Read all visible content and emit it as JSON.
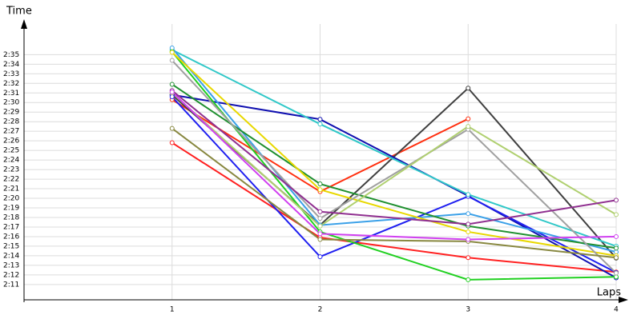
{
  "chart_data": {
    "type": "line",
    "y_label": "Time",
    "x_label": "Laps",
    "x": [
      1,
      2,
      3,
      4
    ],
    "xlim": [
      0,
      4
    ],
    "xticks": [
      1,
      2,
      3,
      4
    ],
    "ylim": [
      129.4,
      158.2
    ],
    "yticks": [
      {
        "value": 131,
        "label": "2:11"
      },
      {
        "value": 132,
        "label": "2:12"
      },
      {
        "value": 133,
        "label": "2:13"
      },
      {
        "value": 134,
        "label": "2:14"
      },
      {
        "value": 135,
        "label": "2:15"
      },
      {
        "value": 136,
        "label": "2:16"
      },
      {
        "value": 137,
        "label": "2:17"
      },
      {
        "value": 138,
        "label": "2:18"
      },
      {
        "value": 139,
        "label": "2:19"
      },
      {
        "value": 140,
        "label": "2:20"
      },
      {
        "value": 141,
        "label": "2:21"
      },
      {
        "value": 142,
        "label": "2:22"
      },
      {
        "value": 143,
        "label": "2:23"
      },
      {
        "value": 144,
        "label": "2:24"
      },
      {
        "value": 145,
        "label": "2:25"
      },
      {
        "value": 146,
        "label": "2:26"
      },
      {
        "value": 147,
        "label": "2:27"
      },
      {
        "value": 148,
        "label": "2:28"
      },
      {
        "value": 149,
        "label": "2:29"
      },
      {
        "value": 150,
        "label": "2:30"
      },
      {
        "value": 151,
        "label": "2:31"
      },
      {
        "value": 152,
        "label": "2:32"
      },
      {
        "value": 153,
        "label": "2:33"
      },
      {
        "value": 154,
        "label": "2:34"
      },
      {
        "value": 155,
        "label": "2:35"
      }
    ],
    "grid": true,
    "series": [
      {
        "color": "#ff2020",
        "values": [
          145.8,
          135.9,
          133.8,
          132.3
        ]
      },
      {
        "color": "#ff3010",
        "values": [
          150.3,
          140.7,
          148.3,
          null
        ]
      },
      {
        "color": "#404040",
        "values": [
          150.8,
          137.2,
          151.5,
          133.75
        ]
      },
      {
        "color": "#1010b0",
        "values": [
          150.8,
          148.25,
          140.25,
          131.7
        ]
      },
      {
        "color": "#2020f0",
        "values": [
          150.6,
          133.9,
          140.2,
          132.25
        ]
      },
      {
        "color": "#30c8c8",
        "values": [
          155.5,
          147.75,
          140.4,
          135
        ]
      },
      {
        "color": "#3aa0e8",
        "values": [
          155.7,
          137.2,
          138.4,
          134.4
        ]
      },
      {
        "color": "#20d020",
        "values": [
          155.3,
          136.5,
          131.5,
          131.8
        ]
      },
      {
        "color": "#209030",
        "values": [
          151.9,
          141.5,
          137.1,
          134.8
        ]
      },
      {
        "color": "#e8d800",
        "values": [
          155.25,
          140.9,
          136.5,
          134
        ]
      },
      {
        "color": "#a0a0a0",
        "values": [
          154.4,
          137.9,
          147.2,
          132.2
        ]
      },
      {
        "color": "#888840",
        "values": [
          147.3,
          135.7,
          135.5,
          133.8
        ]
      },
      {
        "color": "#b0d070",
        "values": [
          151,
          137.1,
          147.5,
          138.3
        ]
      },
      {
        "color": "#903090",
        "values": [
          151.25,
          138.6,
          137.3,
          139.8
        ]
      },
      {
        "color": "#d040f0",
        "values": [
          151.1,
          136.3,
          135.7,
          136
        ]
      }
    ]
  }
}
